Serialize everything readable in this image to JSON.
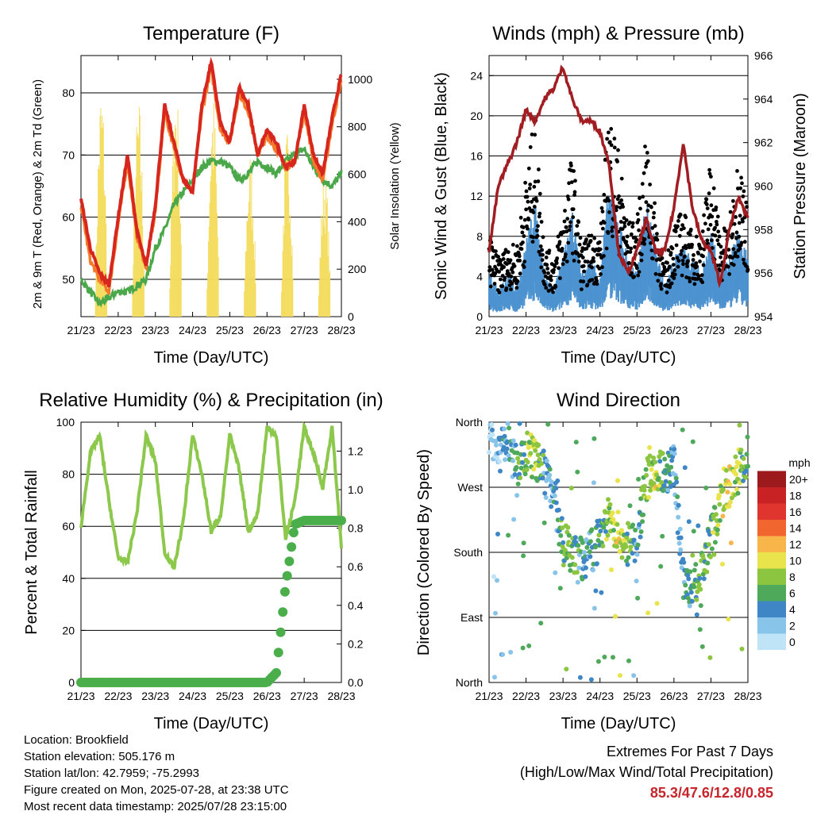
{
  "x_ticks": [
    "21/23",
    "22/23",
    "23/23",
    "24/23",
    "25/23",
    "26/23",
    "27/23",
    "28/23"
  ],
  "chart_data": [
    {
      "type": "line",
      "title": "Temperature (F)",
      "xlabel": "Time (Day/UTC)",
      "ylabel": "2m & 9m T (Red, Orange) & 2m Td (Green)",
      "y2label": "Solar Insolation (Yellow)",
      "ylim": [
        44,
        86
      ],
      "yticks": [
        50,
        60,
        70,
        80
      ],
      "y2lim": [
        0,
        1100
      ],
      "y2ticks": [
        0,
        200,
        400,
        600,
        800,
        1000
      ],
      "x": [
        0,
        0.25,
        0.5,
        0.75,
        1,
        1.25,
        1.5,
        1.75,
        2,
        2.25,
        2.5,
        2.75,
        3,
        3.25,
        3.5,
        3.75,
        4,
        4.25,
        4.5,
        4.75,
        5,
        5.25,
        5.5,
        5.75,
        6,
        6.25,
        6.5,
        6.75,
        7
      ],
      "series": [
        {
          "name": "2m T",
          "color": "#d7261e",
          "values": [
            63,
            55,
            51,
            49,
            60,
            70,
            58,
            52,
            62,
            78,
            72,
            66,
            64,
            78,
            85,
            75,
            72,
            81,
            78,
            70,
            74,
            72,
            68,
            69,
            78,
            70,
            67,
            76,
            83
          ]
        },
        {
          "name": "9m T",
          "color": "#f47a2a",
          "values": [
            62,
            53,
            50,
            48,
            59,
            69,
            57,
            52,
            61,
            77,
            71,
            66,
            64,
            77,
            84,
            74,
            72,
            80,
            77,
            70,
            73,
            71,
            68,
            69,
            77,
            69,
            66,
            75,
            82
          ]
        },
        {
          "name": "2m Td",
          "color": "#4aa84a",
          "values": [
            50,
            48,
            46,
            47,
            48,
            48,
            49,
            50,
            55,
            58,
            62,
            64,
            66,
            68,
            69,
            69,
            68,
            66,
            67,
            69,
            68,
            67,
            69,
            70,
            71,
            68,
            66,
            65,
            67
          ]
        },
        {
          "name": "Solar Insolation",
          "color": "#f4dc5e",
          "axis": "right",
          "peaks": [
            1000,
            930,
            1020,
            950,
            700,
            800,
            640,
            990
          ]
        }
      ]
    },
    {
      "type": "scatter",
      "title": "Winds (mph) & Pressure (mb)",
      "xlabel": "Time (Day/UTC)",
      "ylabel": "Sonic Wind & Gust (Blue, Black)",
      "y2label": "Station Pressure (Maroon)",
      "ylim": [
        0,
        26
      ],
      "yticks": [
        0,
        4,
        8,
        12,
        16,
        20,
        24
      ],
      "y2lim": [
        954,
        966
      ],
      "y2ticks": [
        954,
        956,
        958,
        960,
        962,
        964,
        966
      ],
      "x": [
        0,
        0.25,
        0.5,
        0.75,
        1,
        1.25,
        1.5,
        1.75,
        2,
        2.25,
        2.5,
        2.75,
        3,
        3.25,
        3.5,
        3.75,
        4,
        4.25,
        4.5,
        4.75,
        5,
        5.25,
        5.5,
        5.75,
        6,
        6.25,
        6.5,
        6.75,
        7
      ],
      "series": [
        {
          "name": "Sonic Wind",
          "color": "#4d93d0",
          "values": [
            3,
            2,
            3,
            2,
            5,
            8,
            3,
            2,
            4,
            7,
            3,
            4,
            3,
            9,
            7,
            4,
            3,
            8,
            5,
            2,
            4,
            5,
            4,
            3,
            6,
            3,
            4,
            6,
            4
          ]
        },
        {
          "name": "Gust",
          "color": "#000000",
          "values": [
            7,
            5,
            6,
            6,
            12,
            17,
            6,
            5,
            9,
            14,
            6,
            7,
            7,
            18,
            14,
            8,
            8,
            15,
            9,
            4,
            8,
            9,
            7,
            7,
            14,
            7,
            8,
            14,
            9
          ]
        },
        {
          "name": "Station Pressure",
          "color": "#a11d21",
          "axis": "right",
          "values": [
            957,
            960,
            961,
            962,
            963.5,
            963,
            964,
            964.5,
            965.5,
            964,
            963,
            963,
            962.5,
            961,
            957,
            956,
            957,
            958.5,
            957,
            957,
            959,
            962,
            959,
            957.5,
            957,
            955.5,
            958,
            959.5,
            958.5
          ]
        }
      ]
    },
    {
      "type": "line",
      "title": "Relative Humidity (%) & Precipitation (in)",
      "xlabel": "Time (Day/UTC)",
      "ylabel": "Percent & Total Rainfall",
      "ylim": [
        0,
        100
      ],
      "yticks": [
        0,
        20,
        40,
        60,
        80,
        100
      ],
      "y2lim": [
        0,
        1.35
      ],
      "y2ticks": [
        0.0,
        0.2,
        0.4,
        0.6,
        0.8,
        1.0,
        1.2
      ],
      "x": [
        0,
        0.25,
        0.5,
        0.75,
        1,
        1.25,
        1.5,
        1.75,
        2,
        2.25,
        2.5,
        2.75,
        3,
        3.25,
        3.5,
        3.75,
        4,
        4.25,
        4.5,
        4.75,
        5,
        5.25,
        5.5,
        5.75,
        6,
        6.25,
        6.5,
        6.75,
        7
      ],
      "series": [
        {
          "name": "Relative Humidity",
          "color": "#8cc84b",
          "values": [
            60,
            88,
            95,
            70,
            48,
            46,
            65,
            95,
            85,
            50,
            44,
            62,
            95,
            80,
            58,
            64,
            95,
            82,
            58,
            65,
            98,
            95,
            55,
            70,
            98,
            88,
            75,
            98,
            52
          ]
        },
        {
          "name": "Total Precipitation",
          "color": "#4aae4a",
          "axis": "right",
          "values": [
            0,
            0,
            0,
            0,
            0,
            0,
            0,
            0,
            0,
            0,
            0,
            0,
            0,
            0,
            0,
            0,
            0,
            0,
            0,
            0,
            0,
            0.05,
            0.5,
            0.82,
            0.84,
            0.84,
            0.84,
            0.84,
            0.84
          ]
        }
      ]
    },
    {
      "type": "scatter",
      "title": "Wind Direction",
      "xlabel": "Time (Day/UTC)",
      "ylabel": "Direction (Colored By Speed)",
      "yticks": [
        "North",
        "East",
        "South",
        "West",
        "North"
      ],
      "ylim": [
        0,
        360
      ],
      "legend_title": "mph",
      "legend_labels": [
        "0",
        "2",
        "4",
        "6",
        "8",
        "10",
        "12",
        "14",
        "16",
        "18",
        "20+"
      ],
      "legend_colors": [
        "#bfe4f7",
        "#88c4ea",
        "#3e86c5",
        "#4ea95a",
        "#8cc640",
        "#e9e34c",
        "#f7b54a",
        "#f1662f",
        "#e0352e",
        "#c92225",
        "#9d1a1c"
      ],
      "x": [
        0,
        0.25,
        0.5,
        0.75,
        1,
        1.25,
        1.5,
        1.75,
        2,
        2.25,
        2.5,
        2.75,
        3,
        3.25,
        3.5,
        3.75,
        4,
        4.25,
        4.5,
        4.75,
        5,
        5.25,
        5.5,
        5.75,
        6,
        6.25,
        6.5,
        6.75,
        7
      ],
      "direction": [
        330,
        320,
        330,
        300,
        320,
        310,
        290,
        260,
        190,
        180,
        170,
        180,
        200,
        230,
        210,
        190,
        200,
        280,
        290,
        290,
        300,
        140,
        120,
        160,
        200,
        250,
        270,
        300,
        310
      ],
      "speed": [
        1,
        2,
        3,
        5,
        7,
        9,
        4,
        3,
        6,
        7,
        4,
        4,
        5,
        8,
        10,
        6,
        4,
        8,
        9,
        5,
        3,
        4,
        5,
        6,
        7,
        9,
        10,
        8,
        5
      ]
    }
  ],
  "info": {
    "location": "Location: Brookfield",
    "elevation": "Station elevation: 505.176 m",
    "latlon": "Station lat/lon: 42.7959; -75.2993",
    "created": "Figure created on Mon, 2025-07-28, at 23:38 UTC",
    "timestamp": "Most recent data timestamp: 2025/07/28 23:15:00"
  },
  "extremes": {
    "line1": "Extremes For Past 7 Days",
    "line2": "(High/Low/Max Wind/Total Precipitation)",
    "values": "85.3/47.6/12.8/0.85"
  }
}
